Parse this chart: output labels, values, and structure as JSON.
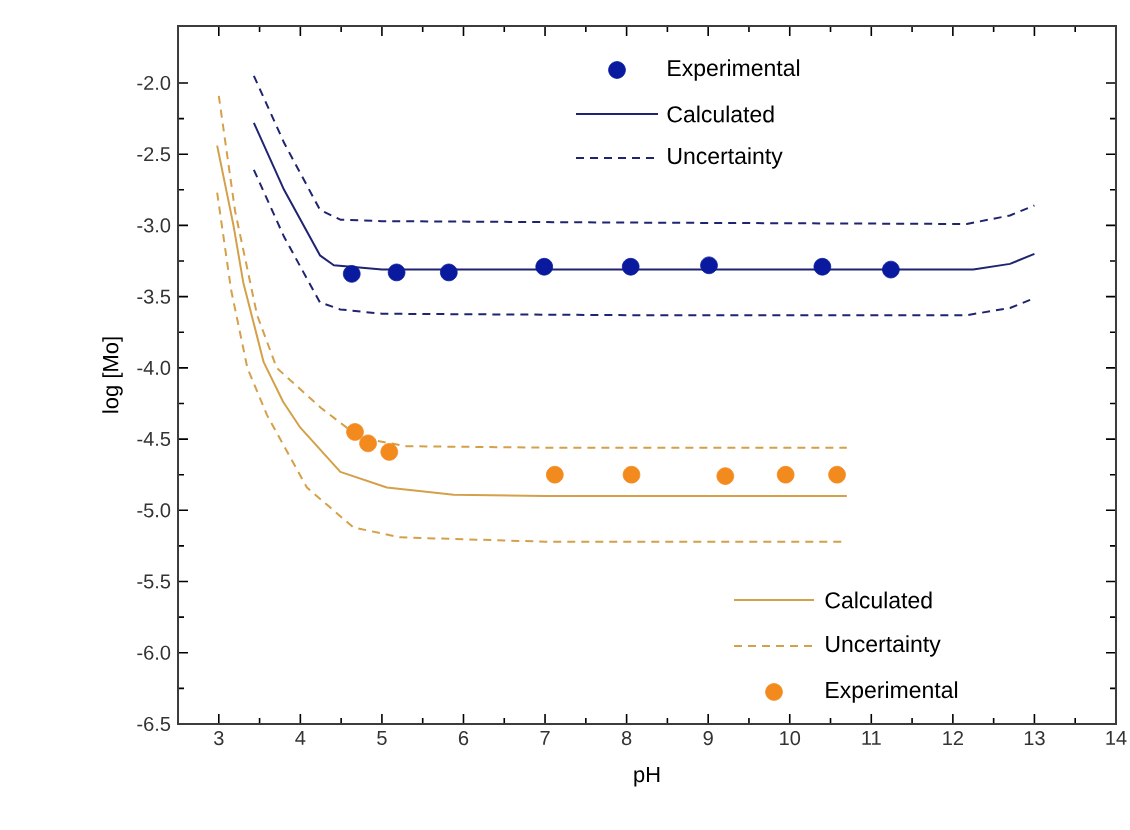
{
  "chart_data": {
    "type": "line",
    "xlabel": "pH",
    "ylabel": "log [Mo]",
    "xlim": [
      2.5,
      14
    ],
    "ylim": [
      -6.5,
      -1.6
    ],
    "xticks": [
      3,
      4,
      5,
      6,
      7,
      8,
      9,
      10,
      11,
      12,
      13,
      14
    ],
    "yticks": [
      {
        "value": -6.5,
        "label": "-6.5"
      },
      {
        "value": -6,
        "label": "-6.0"
      },
      {
        "value": -5.5,
        "label": "-5.5"
      },
      {
        "value": -5,
        "label": "-5.0"
      },
      {
        "value": -4.5,
        "label": "-4.5"
      },
      {
        "value": -4,
        "label": "-4.0"
      },
      {
        "value": -3.5,
        "label": "-3.5"
      },
      {
        "value": -3,
        "label": "-3.0"
      },
      {
        "value": -2.5,
        "label": "-2.5"
      },
      {
        "value": -2,
        "label": "-2.0"
      }
    ],
    "legend": "right",
    "series": [
      {
        "name": "Experimental",
        "type": "scatter",
        "marker": "circle",
        "color": "#0a1a9e",
        "x": [
          4.63,
          5.18,
          5.82,
          6.99,
          8.05,
          9.01,
          10.4,
          11.24
        ],
        "values": [
          -3.34,
          -3.33,
          -3.33,
          -3.29,
          -3.29,
          -3.28,
          -3.29,
          -3.31
        ]
      },
      {
        "name": "Calculated",
        "line_style": "solid",
        "color": "#1f2470",
        "x": [
          3.43,
          3.8,
          4.24,
          4.41,
          5.0,
          8.0,
          12.25,
          12.7,
          13.0
        ],
        "values": [
          -2.28,
          -2.75,
          -3.21,
          -3.28,
          -3.31,
          -3.31,
          -3.31,
          -3.27,
          -3.2
        ]
      },
      {
        "name": "Uncertainty",
        "line_style": "dashed",
        "color": "#1f2470",
        "x": [
          3.43,
          3.8,
          4.24,
          4.49,
          5.0,
          8.0,
          12.17,
          12.7,
          13.0
        ],
        "values": [
          -1.95,
          -2.42,
          -2.89,
          -2.96,
          -2.97,
          -2.98,
          -2.99,
          -2.93,
          -2.86
        ]
      },
      {
        "line_style": "dashed",
        "color": "#1f2470",
        "x": [
          3.43,
          3.8,
          4.24,
          4.49,
          5.0,
          8.0,
          12.17,
          12.7,
          13.0
        ],
        "values": [
          -2.61,
          -3.08,
          -3.54,
          -3.59,
          -3.62,
          -3.63,
          -3.63,
          -3.58,
          -3.51
        ]
      },
      {
        "name": "Calculated",
        "line_style": "solid",
        "color": "#d4a04a",
        "x": [
          2.98,
          3.18,
          3.3,
          3.55,
          3.79,
          4.0,
          4.49,
          5.06,
          5.88,
          7.0,
          10.7
        ],
        "values": [
          -2.44,
          -3.0,
          -3.4,
          -3.96,
          -4.24,
          -4.42,
          -4.73,
          -4.84,
          -4.89,
          -4.9,
          -4.9
        ]
      },
      {
        "name": "Uncertainty",
        "line_style": "dashed",
        "color": "#d4a04a",
        "x": [
          3.0,
          3.2,
          3.47,
          3.71,
          4.25,
          4.73,
          5.3,
          7.0,
          10.7
        ],
        "values": [
          -2.09,
          -2.9,
          -3.63,
          -4.0,
          -4.28,
          -4.49,
          -4.55,
          -4.56,
          -4.56
        ]
      },
      {
        "line_style": "dashed",
        "color": "#d4a04a",
        "x": [
          2.98,
          3.15,
          3.35,
          3.59,
          4.08,
          4.65,
          5.22,
          7.0,
          10.7
        ],
        "values": [
          -2.77,
          -3.45,
          -4.0,
          -4.33,
          -4.84,
          -5.12,
          -5.19,
          -5.22,
          -5.22
        ]
      },
      {
        "name": "Experimental",
        "type": "scatter",
        "marker": "circle",
        "color": "#f28a1e",
        "x": [
          4.67,
          4.83,
          5.09,
          7.12,
          8.06,
          9.21,
          9.95,
          10.58
        ],
        "values": [
          -4.45,
          -4.53,
          -4.59,
          -4.75,
          -4.75,
          -4.76,
          -4.75,
          -4.75
        ]
      }
    ]
  }
}
